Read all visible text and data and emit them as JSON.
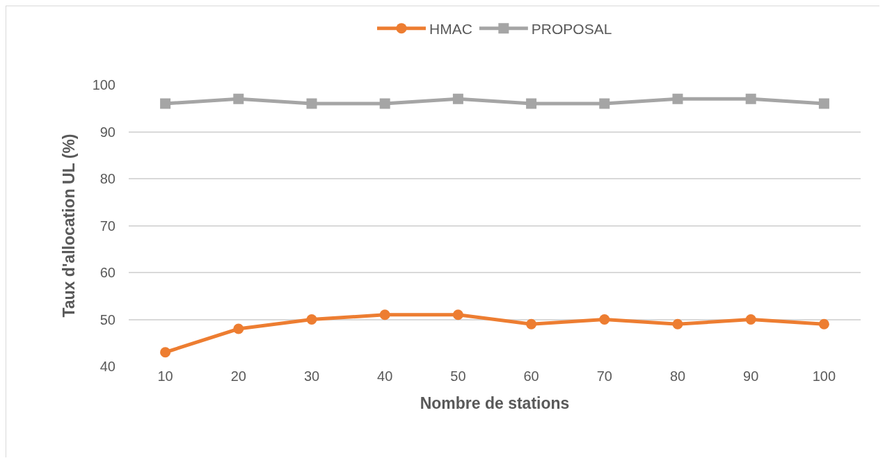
{
  "chart_data": {
    "type": "line",
    "xlabel": "Nombre de stations",
    "ylabel": "Taux d'allocation UL (%)",
    "categories": [
      "10",
      "20",
      "30",
      "40",
      "50",
      "60",
      "70",
      "80",
      "90",
      "100"
    ],
    "series": [
      {
        "name": "HMAC",
        "color": "#ed7d31",
        "marker": "circle",
        "values": [
          43,
          48,
          50,
          51,
          51,
          49,
          50,
          49,
          50,
          49
        ]
      },
      {
        "name": "PROPOSAL",
        "color": "#a5a5a5",
        "marker": "square",
        "values": [
          96,
          97,
          96,
          96,
          97,
          96,
          96,
          97,
          97,
          96
        ]
      }
    ],
    "ylim": [
      40,
      100
    ],
    "yticks": [
      40,
      50,
      60,
      70,
      80,
      90,
      100
    ],
    "grid": "y",
    "legend": "top",
    "line_style": "solid"
  }
}
